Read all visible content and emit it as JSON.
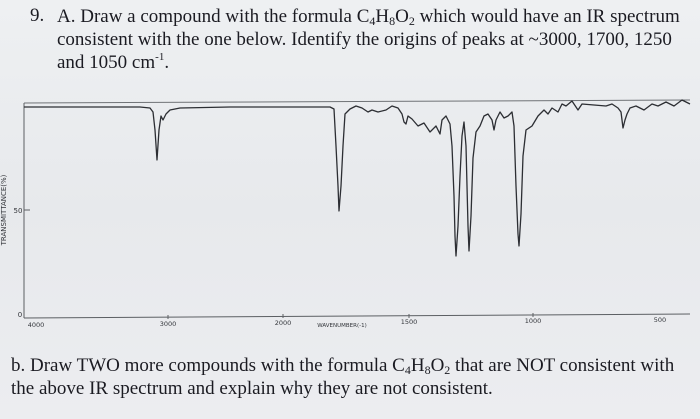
{
  "question": {
    "number": "9.",
    "part_a_line1_pre": "A. Draw a compound with the formula C",
    "part_a_sub_c": "4",
    "part_a_h": "H",
    "part_a_sub_h": "8",
    "part_a_o": "O",
    "part_a_sub_o": "2",
    "part_a_line1_post": " which would have an IR spectrum",
    "part_a_line2": "consistent with the one below. Identify the origins of peaks at ~3000, 1700, 1250",
    "part_a_line3_pre": "and 1050 cm",
    "part_a_line3_sup": "-1",
    "part_a_line3_post": "."
  },
  "spectrum": {
    "y_axis_label": "TRANSMITTANCE(%)",
    "y_tick_50": "50",
    "y_tick_0": "0",
    "x_tick_4000": "4000",
    "x_tick_3000": "3000",
    "x_tick_2000": "2000",
    "x_tick_1500": "1500",
    "x_tick_1000": "1000",
    "x_tick_500": "500",
    "x_axis_label": "WAVENUMBER(-1)"
  },
  "part_b": {
    "line1_pre": "b. Draw TWO more compounds with the formula C",
    "sub_c": "4",
    "h": "H",
    "sub_h": "8",
    "o": "O",
    "sub_o": "2",
    "line1_post": " that are NOT consistent with",
    "line2": "the above IR spectrum and explain why they are not consistent."
  }
}
